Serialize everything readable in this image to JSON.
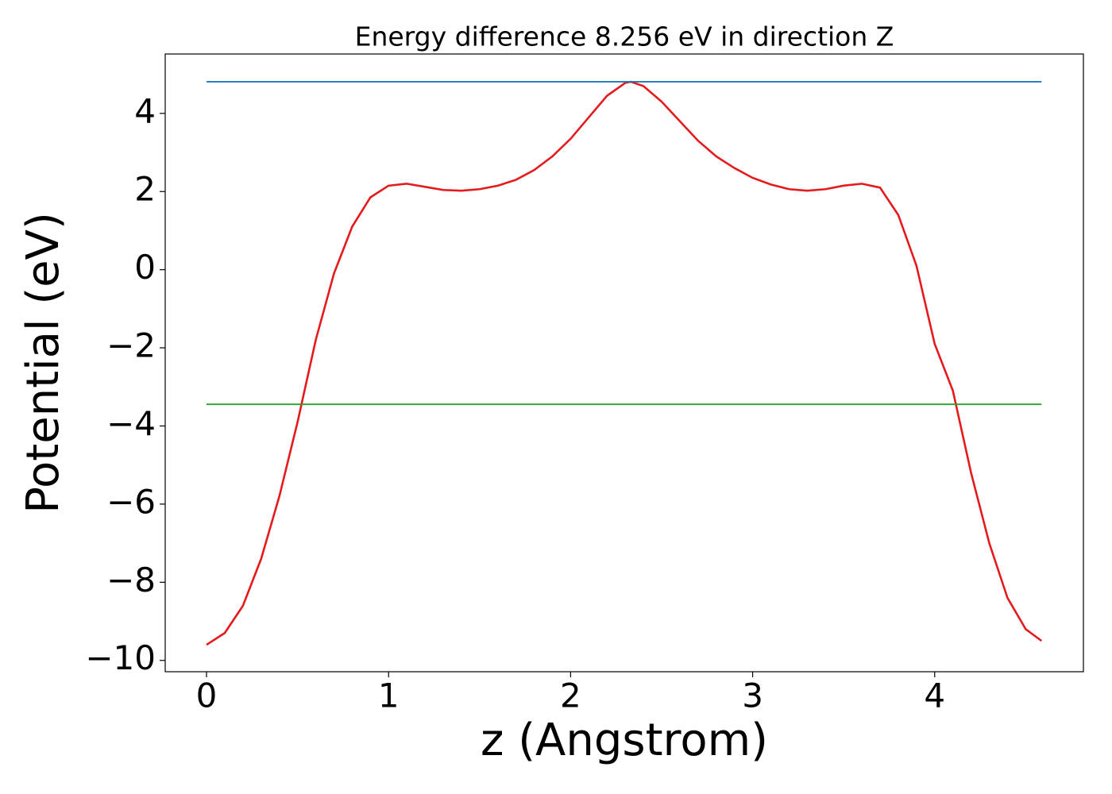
{
  "chart_data": {
    "type": "line",
    "title": "Energy difference 8.256 eV in direction Z",
    "xlabel": "z (Angstrom)",
    "ylabel": "Potential (eV)",
    "xlim": [
      -0.227,
      4.817
    ],
    "ylim": [
      -10.29,
      5.52
    ],
    "xticks": [
      0,
      1,
      2,
      3,
      4
    ],
    "yticks": [
      {
        "value": -10,
        "label": "−10"
      },
      {
        "value": -8,
        "label": "−8"
      },
      {
        "value": -6,
        "label": "−6"
      },
      {
        "value": -4,
        "label": "−4"
      },
      {
        "value": -2,
        "label": "−2"
      },
      0,
      2,
      4
    ],
    "grid": false,
    "series": [
      {
        "color": "#e41a1c",
        "x": [
          0,
          0.1,
          0.2,
          0.3,
          0.4,
          0.5,
          0.6,
          0.7,
          0.8,
          0.9,
          1.0,
          1.1,
          1.2,
          1.3,
          1.4,
          1.5,
          1.6,
          1.7,
          1.8,
          1.9,
          2.0,
          2.1,
          2.2,
          2.3,
          2.33,
          2.4,
          2.5,
          2.6,
          2.7,
          2.8,
          2.9,
          3.0,
          3.1,
          3.2,
          3.3,
          3.4,
          3.5,
          3.6,
          3.7,
          3.8,
          3.9,
          3.95,
          4.0,
          4.1,
          4.2,
          4.3,
          4.4,
          4.5,
          4.587
        ],
        "values": [
          -9.6,
          -9.3,
          -8.6,
          -7.4,
          -5.8,
          -3.9,
          -1.8,
          -0.1,
          1.1,
          1.85,
          2.15,
          2.2,
          2.12,
          2.04,
          2.02,
          2.06,
          2.15,
          2.3,
          2.55,
          2.9,
          3.35,
          3.9,
          4.45,
          4.78,
          4.81,
          4.7,
          4.3,
          3.8,
          3.3,
          2.9,
          2.6,
          2.35,
          2.18,
          2.06,
          2.02,
          2.06,
          2.15,
          2.2,
          2.1,
          1.4,
          0.1,
          -0.9,
          -1.9,
          -3.1,
          -5.2,
          -7.0,
          -8.4,
          -9.2,
          -9.5
        ]
      },
      {
        "color": "#1f77b4",
        "x": [
          0,
          4.587
        ],
        "values": [
          4.81,
          4.81
        ]
      },
      {
        "color": "#2ca02c",
        "x": [
          0,
          4.587
        ],
        "values": [
          -3.446,
          -3.446
        ]
      }
    ]
  }
}
